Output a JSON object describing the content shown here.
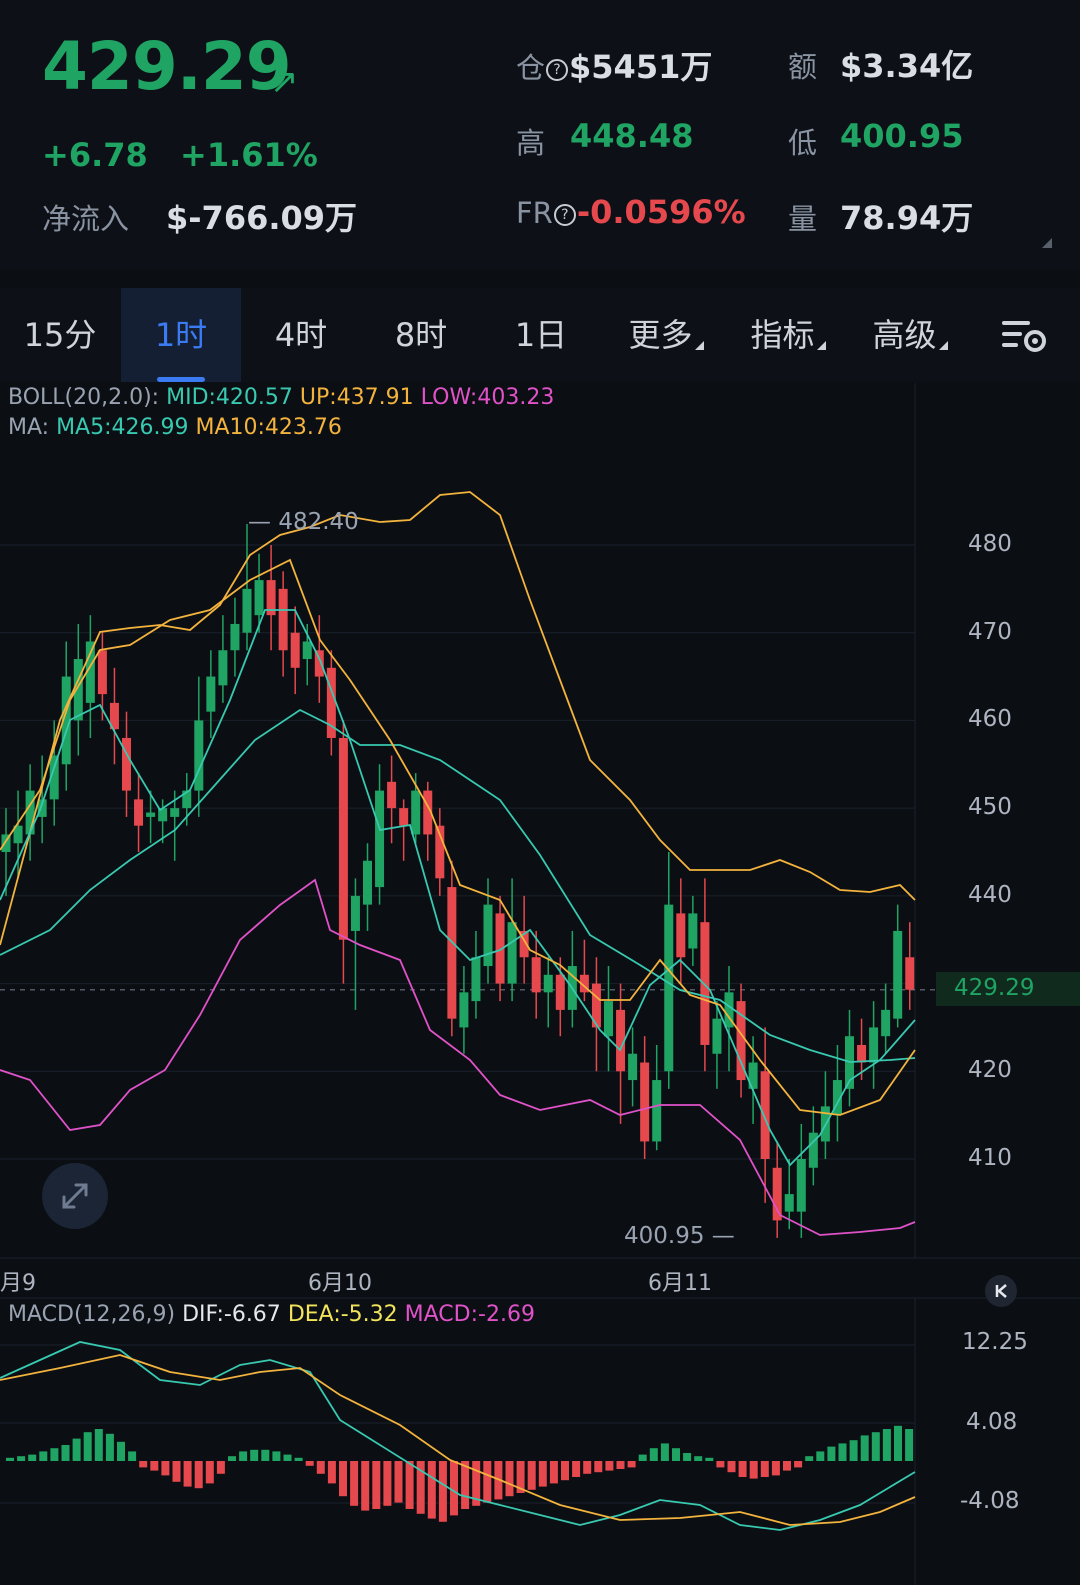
{
  "header": {
    "price": "429.29",
    "price_arrow": "↗",
    "change": "+6.78",
    "change_pct": "+1.61%",
    "netflow_label": "净流入",
    "netflow_value": "$-766.09万",
    "oi_label": "仓",
    "oi_value": "$5451万",
    "turnover_label": "额",
    "turnover_value": "$3.34亿",
    "high_label": "高",
    "high_value": "448.48",
    "low_label": "低",
    "low_value": "400.95",
    "fr_label": "FR",
    "fr_value": "-0.0596%",
    "volume_label": "量",
    "volume_value": "78.94万",
    "help_glyph": "?"
  },
  "tabs": [
    {
      "label": "15分"
    },
    {
      "label": "1时",
      "active": true
    },
    {
      "label": "4时"
    },
    {
      "label": "8时"
    },
    {
      "label": "1日"
    },
    {
      "label": "更多"
    },
    {
      "label": "指标"
    },
    {
      "label": "高级"
    }
  ],
  "boll": {
    "prefix": "BOLL(20,2.0):",
    "mid": "MID:420.57",
    "up": "UP:437.91",
    "low": "LOW:403.23"
  },
  "ma": {
    "prefix": "MA:",
    "ma5": "MA5:426.99",
    "ma10": "MA10:423.76"
  },
  "macd": {
    "prefix": "MACD(12,26,9)",
    "dif": "DIF:-6.67",
    "dea": "DEA:-5.32",
    "macd": "MACD:-2.69"
  },
  "price_axis": [
    "480",
    "470",
    "460",
    "450",
    "440",
    "420",
    "410"
  ],
  "macd_axis": [
    "12.25",
    "4.08",
    "-4.08"
  ],
  "date_axis": [
    "月9",
    "6月10",
    "6月11"
  ],
  "annotations": {
    "high_mark": "482.40",
    "low_mark": "400.95",
    "current_price_tag": "429.29"
  },
  "colors": {
    "up": "#1fa463",
    "down": "#e5484d",
    "boll_mid": "#38c9b0",
    "boll_up": "#f3b33d",
    "boll_low": "#e052c8",
    "dea": "#f1e35a",
    "active_tab": "#3a7bf2"
  },
  "icons": {
    "settings": "settings-icon",
    "expand": "expand-icon",
    "rewind": "rewind-icon"
  }
}
